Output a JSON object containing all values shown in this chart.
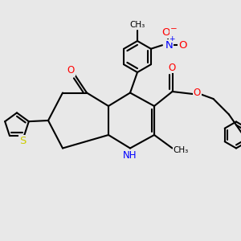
{
  "bg_color": "#e8e8e8",
  "bond_color": "#000000",
  "bond_width": 1.5,
  "N_color": "#0000ff",
  "O_color": "#ff0000",
  "S_color": "#cccc00",
  "font_size": 7.5,
  "fig_width": 3.0,
  "fig_height": 3.0,
  "xlim": [
    0,
    10
  ],
  "ylim": [
    0,
    10
  ]
}
